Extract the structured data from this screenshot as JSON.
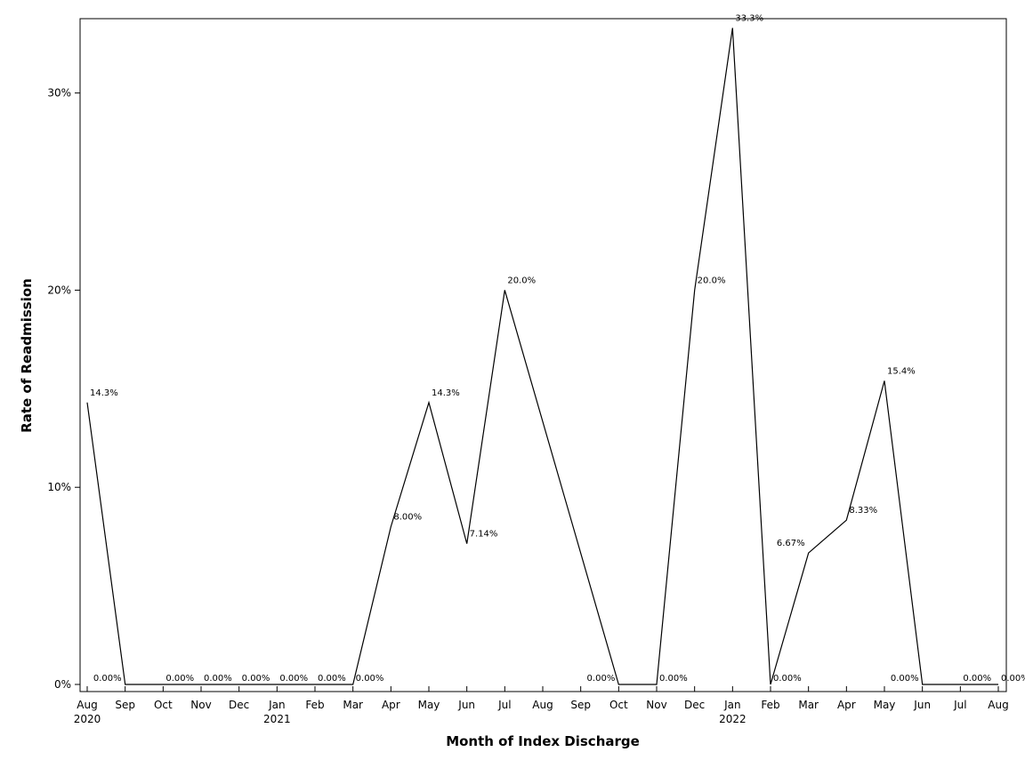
{
  "chart_data": {
    "type": "line",
    "title": "",
    "xlabel": "Month of Index Discharge",
    "ylabel": "Rate of Readmission",
    "ylim": [
      0,
      33.5
    ],
    "y_ticks": [
      {
        "value": 0,
        "label": "0%"
      },
      {
        "value": 10,
        "label": "10%"
      },
      {
        "value": 20,
        "label": "20%"
      },
      {
        "value": 30,
        "label": "30%"
      }
    ],
    "x_ticks": [
      {
        "month": "Aug",
        "year": "2020"
      },
      {
        "month": "Sep",
        "year": ""
      },
      {
        "month": "Oct",
        "year": ""
      },
      {
        "month": "Nov",
        "year": ""
      },
      {
        "month": "Dec",
        "year": ""
      },
      {
        "month": "Jan",
        "year": "2021"
      },
      {
        "month": "Feb",
        "year": ""
      },
      {
        "month": "Mar",
        "year": ""
      },
      {
        "month": "Apr",
        "year": ""
      },
      {
        "month": "May",
        "year": ""
      },
      {
        "month": "Jun",
        "year": ""
      },
      {
        "month": "Jul",
        "year": ""
      },
      {
        "month": "Aug",
        "year": ""
      },
      {
        "month": "Sep",
        "year": ""
      },
      {
        "month": "Oct",
        "year": ""
      },
      {
        "month": "Nov",
        "year": ""
      },
      {
        "month": "Dec",
        "year": ""
      },
      {
        "month": "Jan",
        "year": "2022"
      },
      {
        "month": "Feb",
        "year": ""
      },
      {
        "month": "Mar",
        "year": ""
      },
      {
        "month": "Apr",
        "year": ""
      },
      {
        "month": "May",
        "year": ""
      },
      {
        "month": "Jun",
        "year": ""
      },
      {
        "month": "Jul",
        "year": ""
      },
      {
        "month": "Aug",
        "year": ""
      }
    ],
    "points": [
      {
        "month": "2020-08",
        "value": 14.3,
        "label": "14.3%"
      },
      {
        "month": "2020-09",
        "value": 0,
        "label": "0.00%"
      },
      {
        "month": "2020-10",
        "value": 0,
        "label": "0.00%"
      },
      {
        "month": "2020-11",
        "value": 0,
        "label": "0.00%"
      },
      {
        "month": "2020-12",
        "value": 0,
        "label": "0.00%"
      },
      {
        "month": "2021-01",
        "value": 0,
        "label": "0.00%"
      },
      {
        "month": "2021-02",
        "value": 0,
        "label": "0.00%"
      },
      {
        "month": "2021-03",
        "value": 0,
        "label": "0.00%"
      },
      {
        "month": "2021-04",
        "value": 8.0,
        "label": "8.00%"
      },
      {
        "month": "2021-05",
        "value": 14.3,
        "label": "14.3%"
      },
      {
        "month": "2021-06",
        "value": 7.14,
        "label": "7.14%"
      },
      {
        "month": "2021-07",
        "value": 20.0,
        "label": "20.0%"
      },
      {
        "month": "2021-10",
        "value": 0,
        "label": "0.00%"
      },
      {
        "month": "2021-11",
        "value": 0,
        "label": "0.00%"
      },
      {
        "month": "2021-12",
        "value": 20.0,
        "label": "20.0%"
      },
      {
        "month": "2022-01",
        "value": 33.3,
        "label": "33.3%"
      },
      {
        "month": "2022-02",
        "value": 0,
        "label": "0.00%"
      },
      {
        "month": "2022-03",
        "value": 6.67,
        "label": "6.67%"
      },
      {
        "month": "2022-04",
        "value": 8.33,
        "label": "8.33%"
      },
      {
        "month": "2022-05",
        "value": 15.4,
        "label": "15.4%"
      },
      {
        "month": "2022-06",
        "value": 0,
        "label": "0.00%"
      },
      {
        "month": "2022-07",
        "value": 0,
        "label": "0.00%"
      },
      {
        "month": "2022-08",
        "value": 0,
        "label": "0.00%"
      }
    ]
  }
}
